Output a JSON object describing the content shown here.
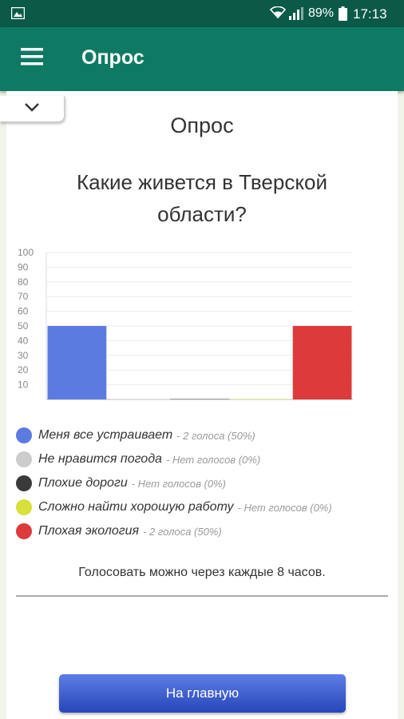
{
  "status_bar": {
    "battery": "89%",
    "time": "17:13"
  },
  "app_bar": {
    "title": "Опрос",
    "menu_icon": "hamburger-menu-icon"
  },
  "poll": {
    "heading": "Опрос",
    "question": "Какие живется в Тверской области?",
    "note": "Голосовать можно через каждые 8 часов.",
    "home_button": "На главную"
  },
  "legend": [
    {
      "label": "Меня все устраивает",
      "count": "- 2 голоса (50%)",
      "color": "#5b7be0"
    },
    {
      "label": "Не нравится погода",
      "count": "- Нет голосов (0%)",
      "color": "#cccccc"
    },
    {
      "label": "Плохие дороги",
      "count": "- Нет голосов (0%)",
      "color": "#3a3a3a"
    },
    {
      "label": "Сложно найти хорошую работу",
      "count": "- Нет голосов (0%)",
      "color": "#d8e03a"
    },
    {
      "label": "Плохая экология",
      "count": "- 2 голоса (50%)",
      "color": "#dd3b3b"
    }
  ],
  "chart_data": {
    "type": "bar",
    "categories": [
      "Меня все устраивает",
      "Не нравится погода",
      "Плохие дороги",
      "Сложно найти хорошую работу",
      "Плохая экология"
    ],
    "values": [
      50,
      0,
      0,
      0,
      50
    ],
    "colors": [
      "#5b7be0",
      "#cccccc",
      "#3a3a3a",
      "#d8e03a",
      "#dd3b3b"
    ],
    "ylim": [
      0,
      100
    ],
    "yticks": [
      "100",
      "90",
      "80",
      "70",
      "60",
      "50",
      "40",
      "30",
      "20",
      "10"
    ],
    "grid": true
  }
}
